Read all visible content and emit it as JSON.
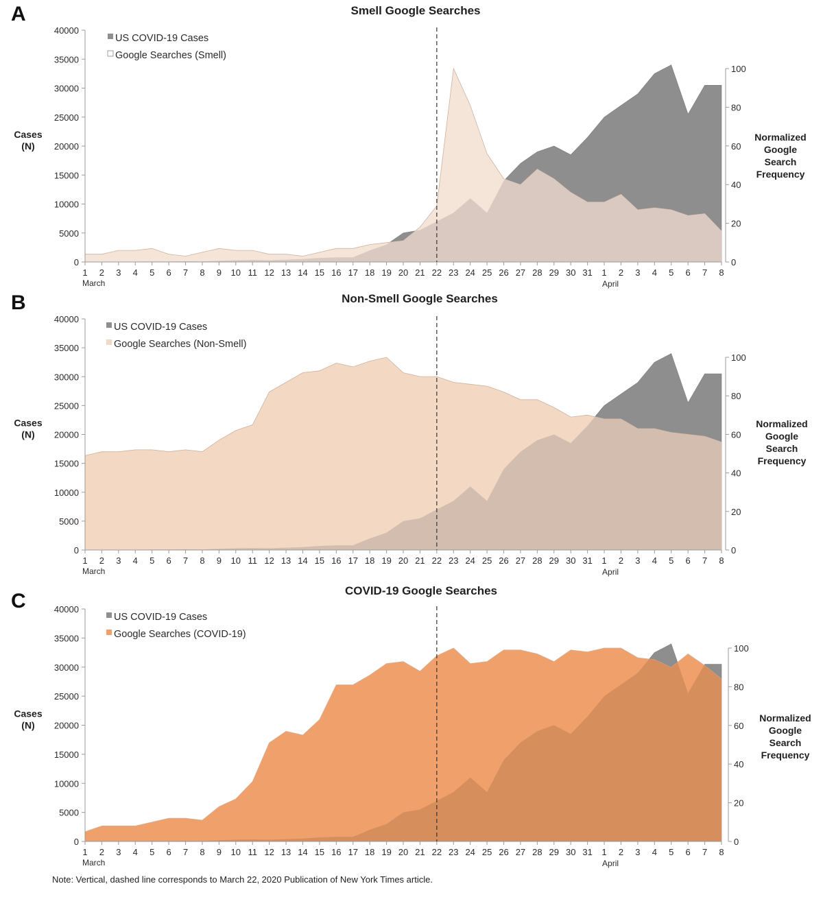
{
  "note": "Note: Vertical, dashed line corresponds to March 22, 2020 Publication of New York Times article.",
  "x_tick_labels": [
    "1",
    "2",
    "3",
    "4",
    "5",
    "6",
    "7",
    "8",
    "9",
    "10",
    "11",
    "12",
    "13",
    "14",
    "15",
    "16",
    "17",
    "18",
    "19",
    "20",
    "21",
    "22",
    "23",
    "24",
    "25",
    "26",
    "27",
    "28",
    "29",
    "30",
    "31",
    "1",
    "2",
    "3",
    "4",
    "5",
    "6",
    "7",
    "8"
  ],
  "month_labels": [
    "March",
    "April"
  ],
  "dashed_line_at": "22",
  "cases_ticks": [
    "0",
    "5000",
    "10000",
    "15000",
    "20000",
    "25000",
    "30000",
    "35000",
    "40000"
  ],
  "freq_ticks": [
    "0",
    "20",
    "40",
    "60",
    "80",
    "100"
  ],
  "colors": {
    "cases": "#8e8e8e",
    "smell": "#f5e5d8",
    "nonsmell": "#f3d8c3",
    "covid": "#f0a06a",
    "overlap_smell": "#d9c9c0",
    "overlap_nonsmell": "#d2bdaf",
    "overlap_covid": "#d68e5c"
  },
  "chart_data": [
    {
      "type": "area",
      "panel": "A",
      "title": "Smell Google Searches",
      "ylabel_left": "Cases (N)",
      "ylabel_right": "Normalized Google Search Frequency",
      "ylim_left": [
        0,
        40000
      ],
      "ylim_right": [
        0,
        120
      ],
      "legend": [
        "US COVID-19 Cases",
        "Google Searches (Smell)"
      ],
      "legend_position": "top-left",
      "x": [
        "Mar 1",
        "Mar 2",
        "Mar 3",
        "Mar 4",
        "Mar 5",
        "Mar 6",
        "Mar 7",
        "Mar 8",
        "Mar 9",
        "Mar 10",
        "Mar 11",
        "Mar 12",
        "Mar 13",
        "Mar 14",
        "Mar 15",
        "Mar 16",
        "Mar 17",
        "Mar 18",
        "Mar 19",
        "Mar 20",
        "Mar 21",
        "Mar 22",
        "Mar 23",
        "Mar 24",
        "Mar 25",
        "Mar 26",
        "Mar 27",
        "Mar 28",
        "Mar 29",
        "Mar 30",
        "Mar 31",
        "Apr 1",
        "Apr 2",
        "Apr 3",
        "Apr 4",
        "Apr 5",
        "Apr 6",
        "Apr 7",
        "Apr 8"
      ],
      "series": [
        {
          "name": "US COVID-19 Cases",
          "axis": "left",
          "values": [
            20,
            30,
            40,
            60,
            80,
            100,
            120,
            100,
            200,
            300,
            350,
            300,
            400,
            500,
            700,
            800,
            800,
            2000,
            3000,
            5000,
            5500,
            7000,
            8500,
            11000,
            8500,
            14000,
            17000,
            19000,
            20000,
            18500,
            21500,
            25000,
            27000,
            29000,
            32500,
            34000,
            25500,
            30500,
            30500
          ]
        },
        {
          "name": "Google Searches (Smell)",
          "axis": "right",
          "values": [
            4,
            4,
            6,
            6,
            7,
            4,
            3,
            5,
            7,
            6,
            6,
            4,
            4,
            3,
            5,
            7,
            7,
            9,
            10,
            11,
            18,
            29,
            100,
            81,
            56,
            43,
            40,
            48,
            43,
            36,
            31,
            31,
            35,
            27,
            28,
            27,
            24,
            25,
            16
          ]
        }
      ]
    },
    {
      "type": "area",
      "panel": "B",
      "title": "Non-Smell Google Searches",
      "ylabel_left": "Cases (N)",
      "ylabel_right": "Normalized Google Search Frequency",
      "ylim_left": [
        0,
        40000
      ],
      "ylim_right": [
        0,
        120
      ],
      "legend": [
        "US COVID-19 Cases",
        "Google Searches (Non-Smell)"
      ],
      "legend_position": "top-left",
      "x": [
        "Mar 1",
        "Mar 2",
        "Mar 3",
        "Mar 4",
        "Mar 5",
        "Mar 6",
        "Mar 7",
        "Mar 8",
        "Mar 9",
        "Mar 10",
        "Mar 11",
        "Mar 12",
        "Mar 13",
        "Mar 14",
        "Mar 15",
        "Mar 16",
        "Mar 17",
        "Mar 18",
        "Mar 19",
        "Mar 20",
        "Mar 21",
        "Mar 22",
        "Mar 23",
        "Mar 24",
        "Mar 25",
        "Mar 26",
        "Mar 27",
        "Mar 28",
        "Mar 29",
        "Mar 30",
        "Mar 31",
        "Apr 1",
        "Apr 2",
        "Apr 3",
        "Apr 4",
        "Apr 5",
        "Apr 6",
        "Apr 7",
        "Apr 8"
      ],
      "series": [
        {
          "name": "US COVID-19 Cases",
          "axis": "left",
          "values": [
            20,
            30,
            40,
            60,
            80,
            100,
            120,
            100,
            200,
            300,
            350,
            300,
            400,
            500,
            700,
            800,
            800,
            2000,
            3000,
            5000,
            5500,
            7000,
            8500,
            11000,
            8500,
            14000,
            17000,
            19000,
            20000,
            18500,
            21500,
            25000,
            27000,
            29000,
            32500,
            34000,
            25500,
            30500,
            30500
          ]
        },
        {
          "name": "Google Searches (Non-Smell)",
          "axis": "right",
          "values": [
            49,
            51,
            51,
            52,
            52,
            51,
            52,
            51,
            57,
            62,
            65,
            82,
            87,
            92,
            93,
            97,
            95,
            98,
            100,
            92,
            90,
            90,
            87,
            86,
            85,
            82,
            78,
            78,
            74,
            69,
            70,
            68,
            68,
            63,
            63,
            61,
            60,
            59,
            56
          ]
        }
      ]
    },
    {
      "type": "area",
      "panel": "C",
      "title": "COVID-19 Google Searches",
      "ylabel_left": "Cases (N)",
      "ylabel_right": "Normalized Google Search Frequency",
      "ylim_left": [
        0,
        40000
      ],
      "ylim_right": [
        0,
        120
      ],
      "legend": [
        "US COVID-19 Cases",
        "Google Searches (COVID-19)"
      ],
      "legend_position": "top-left",
      "x": [
        "Mar 1",
        "Mar 2",
        "Mar 3",
        "Mar 4",
        "Mar 5",
        "Mar 6",
        "Mar 7",
        "Mar 8",
        "Mar 9",
        "Mar 10",
        "Mar 11",
        "Mar 12",
        "Mar 13",
        "Mar 14",
        "Mar 15",
        "Mar 16",
        "Mar 17",
        "Mar 18",
        "Mar 19",
        "Mar 20",
        "Mar 21",
        "Mar 22",
        "Mar 23",
        "Mar 24",
        "Mar 25",
        "Mar 26",
        "Mar 27",
        "Mar 28",
        "Mar 29",
        "Mar 30",
        "Mar 31",
        "Apr 1",
        "Apr 2",
        "Apr 3",
        "Apr 4",
        "Apr 5",
        "Apr 6",
        "Apr 7",
        "Apr 8"
      ],
      "series": [
        {
          "name": "US COVID-19 Cases",
          "axis": "left",
          "values": [
            20,
            30,
            40,
            60,
            80,
            100,
            120,
            100,
            200,
            300,
            350,
            300,
            400,
            500,
            700,
            800,
            800,
            2000,
            3000,
            5000,
            5500,
            7000,
            8500,
            11000,
            8500,
            14000,
            17000,
            19000,
            20000,
            18500,
            21500,
            25000,
            27000,
            29000,
            32500,
            34000,
            25500,
            30500,
            30500
          ]
        },
        {
          "name": "Google Searches (COVID-19)",
          "axis": "right",
          "values": [
            5,
            8,
            8,
            8,
            10,
            12,
            12,
            11,
            18,
            22,
            31,
            51,
            57,
            55,
            63,
            81,
            81,
            86,
            92,
            93,
            88,
            96,
            100,
            92,
            93,
            99,
            99,
            97,
            93,
            99,
            98,
            100,
            100,
            95,
            94,
            90,
            97,
            91,
            84
          ]
        }
      ]
    }
  ]
}
